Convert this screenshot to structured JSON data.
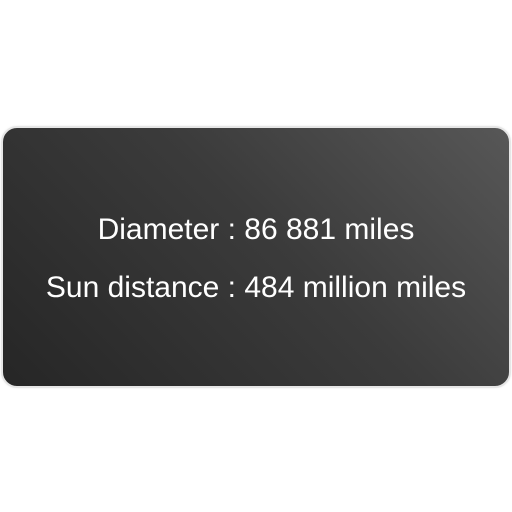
{
  "card": {
    "diameter_text": "Diameter : 86 881 miles",
    "sun_distance_text": "Sun distance : 484 million miles"
  },
  "colors": {
    "card_background_dark": "#262626",
    "card_background_light": "#575757",
    "card_border": "#e6e6e6",
    "text": "#ffffff"
  }
}
